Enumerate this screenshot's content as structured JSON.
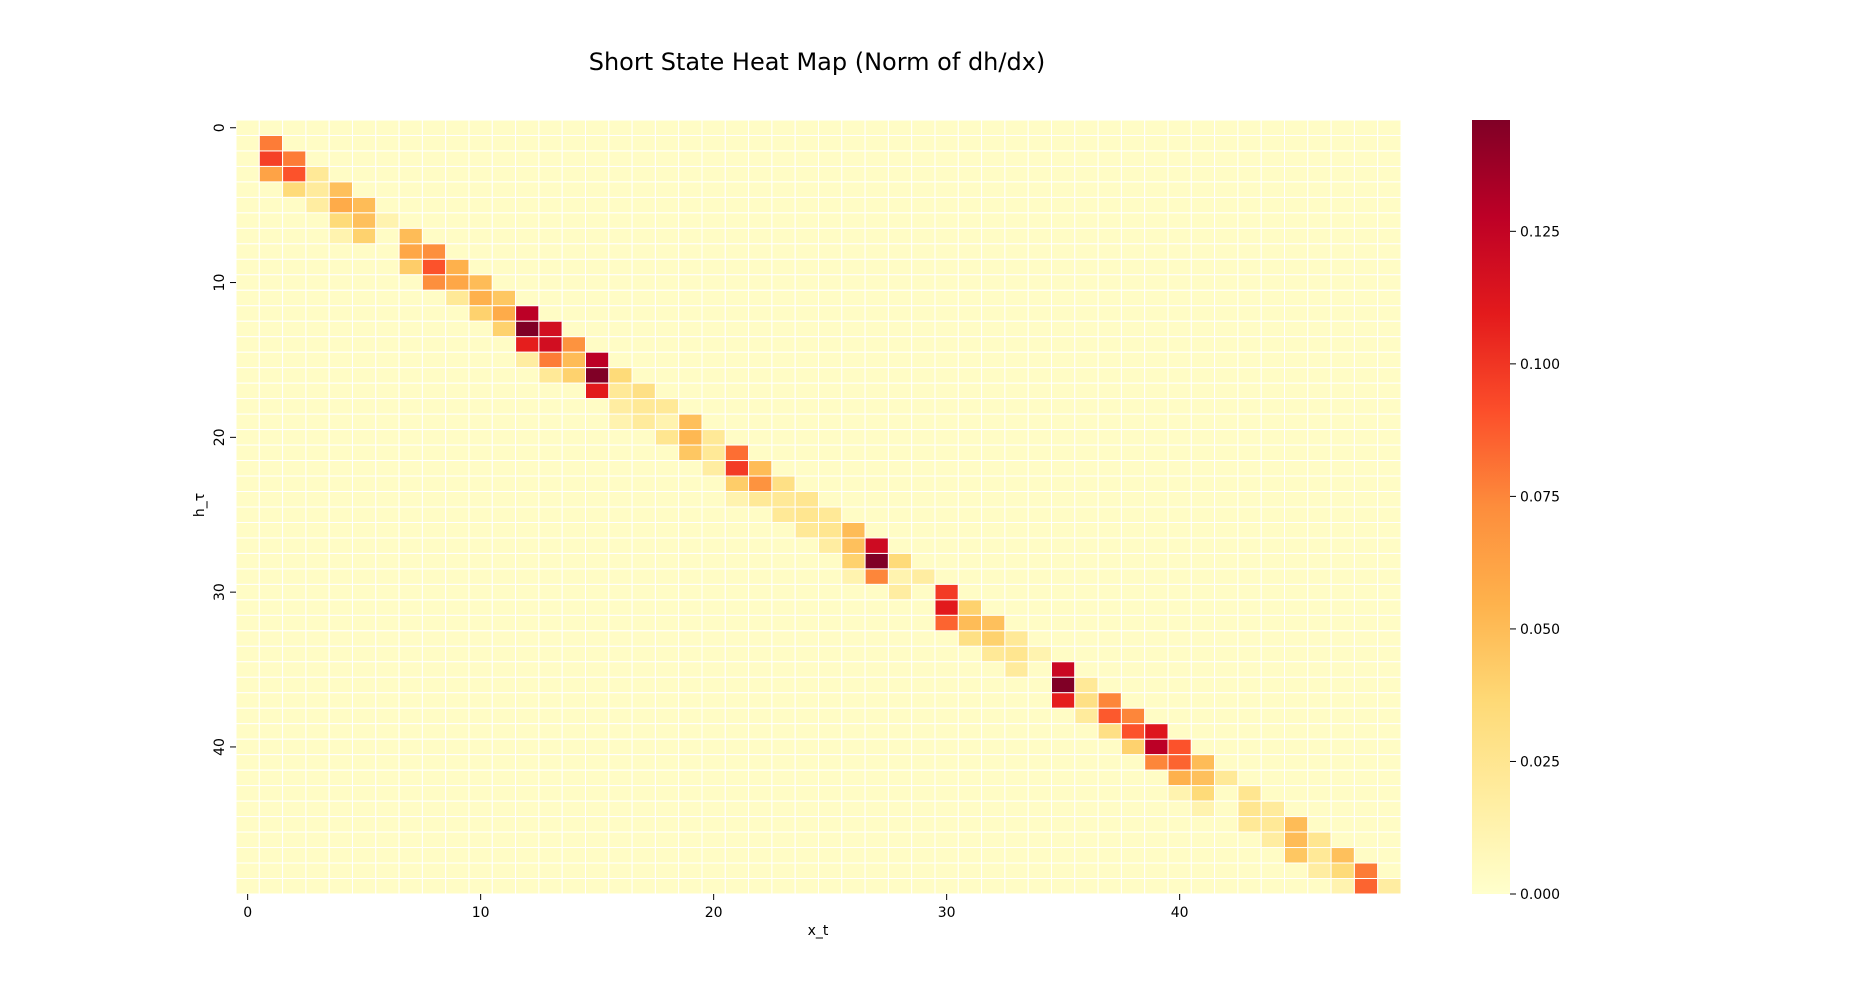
{
  "chart_data": {
    "type": "heatmap",
    "title": "Short State Heat Map (Norm of dh/dx)",
    "xlabel": "x_t",
    "ylabel": "h_τ",
    "rows": 50,
    "cols": 50,
    "x_ticks": [
      0,
      10,
      20,
      30,
      40
    ],
    "y_ticks": [
      0,
      10,
      20,
      30,
      40
    ],
    "colormap": "YlOrRd",
    "vmin": 0.0,
    "vmax": 0.146,
    "colorbar_ticks": [
      "0.000",
      "0.025",
      "0.050",
      "0.075",
      "0.100",
      "0.125"
    ],
    "colorbar_tick_values": [
      0.0,
      0.025,
      0.05,
      0.075,
      0.1,
      0.125
    ],
    "background_value": 0.003,
    "cells": [
      [
        1,
        1,
        0.078
      ],
      [
        1,
        2,
        0.096
      ],
      [
        2,
        2,
        0.078
      ],
      [
        1,
        3,
        0.062
      ],
      [
        2,
        3,
        0.09
      ],
      [
        3,
        3,
        0.022
      ],
      [
        2,
        4,
        0.035
      ],
      [
        3,
        4,
        0.02
      ],
      [
        4,
        4,
        0.048
      ],
      [
        3,
        5,
        0.018
      ],
      [
        4,
        5,
        0.058
      ],
      [
        5,
        5,
        0.05
      ],
      [
        4,
        6,
        0.035
      ],
      [
        5,
        6,
        0.048
      ],
      [
        6,
        6,
        0.012
      ],
      [
        4,
        7,
        0.012
      ],
      [
        5,
        7,
        0.04
      ],
      [
        7,
        7,
        0.05
      ],
      [
        7,
        8,
        0.06
      ],
      [
        8,
        8,
        0.072
      ],
      [
        7,
        9,
        0.042
      ],
      [
        8,
        9,
        0.09
      ],
      [
        9,
        9,
        0.055
      ],
      [
        8,
        10,
        0.072
      ],
      [
        9,
        10,
        0.06
      ],
      [
        10,
        10,
        0.05
      ],
      [
        9,
        11,
        0.022
      ],
      [
        10,
        11,
        0.055
      ],
      [
        11,
        11,
        0.045
      ],
      [
        10,
        12,
        0.04
      ],
      [
        11,
        12,
        0.058
      ],
      [
        12,
        12,
        0.128
      ],
      [
        11,
        13,
        0.04
      ],
      [
        12,
        13,
        0.146
      ],
      [
        13,
        13,
        0.118
      ],
      [
        12,
        14,
        0.108
      ],
      [
        13,
        14,
        0.118
      ],
      [
        14,
        14,
        0.07
      ],
      [
        12,
        15,
        0.018
      ],
      [
        13,
        15,
        0.078
      ],
      [
        14,
        15,
        0.05
      ],
      [
        15,
        15,
        0.128
      ],
      [
        13,
        16,
        0.022
      ],
      [
        14,
        16,
        0.04
      ],
      [
        15,
        16,
        0.146
      ],
      [
        16,
        16,
        0.035
      ],
      [
        15,
        17,
        0.11
      ],
      [
        16,
        17,
        0.022
      ],
      [
        17,
        17,
        0.03
      ],
      [
        16,
        18,
        0.018
      ],
      [
        17,
        18,
        0.022
      ],
      [
        18,
        18,
        0.022
      ],
      [
        16,
        19,
        0.012
      ],
      [
        17,
        19,
        0.02
      ],
      [
        18,
        19,
        0.012
      ],
      [
        19,
        19,
        0.048
      ],
      [
        18,
        20,
        0.025
      ],
      [
        19,
        20,
        0.052
      ],
      [
        20,
        20,
        0.022
      ],
      [
        19,
        21,
        0.045
      ],
      [
        20,
        21,
        0.022
      ],
      [
        21,
        21,
        0.082
      ],
      [
        20,
        22,
        0.018
      ],
      [
        21,
        22,
        0.098
      ],
      [
        22,
        22,
        0.05
      ],
      [
        21,
        23,
        0.042
      ],
      [
        22,
        23,
        0.07
      ],
      [
        23,
        23,
        0.03
      ],
      [
        21,
        24,
        0.012
      ],
      [
        22,
        24,
        0.022
      ],
      [
        23,
        24,
        0.022
      ],
      [
        24,
        24,
        0.025
      ],
      [
        23,
        25,
        0.022
      ],
      [
        24,
        25,
        0.025
      ],
      [
        25,
        25,
        0.022
      ],
      [
        24,
        26,
        0.022
      ],
      [
        25,
        26,
        0.025
      ],
      [
        26,
        26,
        0.05
      ],
      [
        25,
        27,
        0.018
      ],
      [
        26,
        27,
        0.048
      ],
      [
        27,
        27,
        0.12
      ],
      [
        26,
        28,
        0.04
      ],
      [
        27,
        28,
        0.146
      ],
      [
        28,
        28,
        0.035
      ],
      [
        26,
        29,
        0.012
      ],
      [
        27,
        29,
        0.075
      ],
      [
        28,
        29,
        0.012
      ],
      [
        29,
        29,
        0.018
      ],
      [
        28,
        30,
        0.018
      ],
      [
        30,
        30,
        0.098
      ],
      [
        30,
        31,
        0.11
      ],
      [
        31,
        31,
        0.04
      ],
      [
        30,
        32,
        0.085
      ],
      [
        31,
        32,
        0.05
      ],
      [
        32,
        32,
        0.048
      ],
      [
        31,
        33,
        0.03
      ],
      [
        32,
        33,
        0.04
      ],
      [
        33,
        33,
        0.022
      ],
      [
        32,
        34,
        0.022
      ],
      [
        33,
        34,
        0.025
      ],
      [
        34,
        34,
        0.012
      ],
      [
        33,
        35,
        0.02
      ],
      [
        35,
        35,
        0.122
      ],
      [
        35,
        36,
        0.146
      ],
      [
        36,
        36,
        0.022
      ],
      [
        35,
        37,
        0.108
      ],
      [
        36,
        37,
        0.03
      ],
      [
        37,
        37,
        0.075
      ],
      [
        36,
        38,
        0.02
      ],
      [
        37,
        38,
        0.088
      ],
      [
        38,
        38,
        0.075
      ],
      [
        37,
        39,
        0.03
      ],
      [
        38,
        39,
        0.09
      ],
      [
        39,
        39,
        0.112
      ],
      [
        38,
        40,
        0.04
      ],
      [
        39,
        40,
        0.128
      ],
      [
        40,
        40,
        0.09
      ],
      [
        39,
        41,
        0.075
      ],
      [
        40,
        41,
        0.085
      ],
      [
        41,
        41,
        0.05
      ],
      [
        40,
        42,
        0.055
      ],
      [
        41,
        42,
        0.048
      ],
      [
        42,
        42,
        0.022
      ],
      [
        40,
        43,
        0.012
      ],
      [
        41,
        43,
        0.035
      ],
      [
        43,
        43,
        0.025
      ],
      [
        41,
        44,
        0.012
      ],
      [
        43,
        44,
        0.025
      ],
      [
        44,
        44,
        0.02
      ],
      [
        43,
        45,
        0.022
      ],
      [
        44,
        45,
        0.022
      ],
      [
        45,
        45,
        0.05
      ],
      [
        44,
        46,
        0.018
      ],
      [
        45,
        46,
        0.05
      ],
      [
        46,
        46,
        0.025
      ],
      [
        45,
        47,
        0.045
      ],
      [
        46,
        47,
        0.022
      ],
      [
        47,
        47,
        0.048
      ],
      [
        46,
        48,
        0.018
      ],
      [
        47,
        48,
        0.035
      ],
      [
        48,
        48,
        0.078
      ],
      [
        47,
        49,
        0.012
      ],
      [
        48,
        49,
        0.085
      ],
      [
        49,
        49,
        0.018
      ]
    ]
  }
}
